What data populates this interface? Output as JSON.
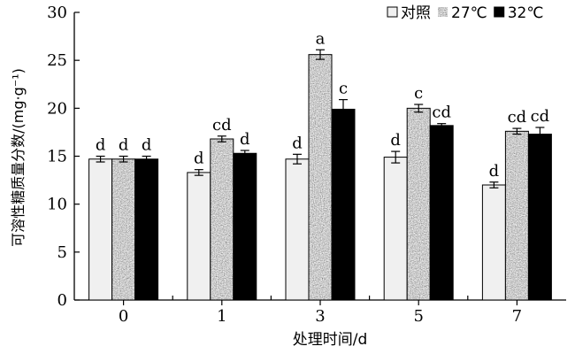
{
  "chart_data": {
    "type": "bar",
    "xlabel": "处理时间/d",
    "ylabel": "可溶性糖质量分数/(mg·g⁻¹)",
    "categories": [
      "0",
      "1",
      "3",
      "5",
      "7"
    ],
    "ylim": [
      0,
      30
    ],
    "yticks": [
      0,
      5,
      10,
      15,
      20,
      25,
      30
    ],
    "grid": false,
    "legend_position": "top-right",
    "series": [
      {
        "name": "对照",
        "pattern": "light",
        "color": "#f0f0f0",
        "values": [
          14.7,
          13.3,
          14.7,
          14.9,
          12.0
        ],
        "errors": [
          0.3,
          0.3,
          0.5,
          0.6,
          0.3
        ],
        "labels": [
          "d",
          "d",
          "d",
          "d",
          "d"
        ]
      },
      {
        "name": "27℃",
        "pattern": "speckled",
        "color": "#9a9a9a",
        "values": [
          14.7,
          16.8,
          25.6,
          20.0,
          17.6
        ],
        "errors": [
          0.3,
          0.3,
          0.5,
          0.4,
          0.3
        ],
        "labels": [
          "d",
          "cd",
          "a",
          "c",
          "cd"
        ]
      },
      {
        "name": "32℃",
        "pattern": "solid",
        "color": "#000000",
        "values": [
          14.7,
          15.3,
          19.9,
          18.2,
          17.3
        ],
        "errors": [
          0.3,
          0.3,
          1.0,
          0.2,
          0.7
        ],
        "labels": [
          "d",
          "d",
          "c",
          "cd",
          "cd"
        ]
      }
    ]
  }
}
